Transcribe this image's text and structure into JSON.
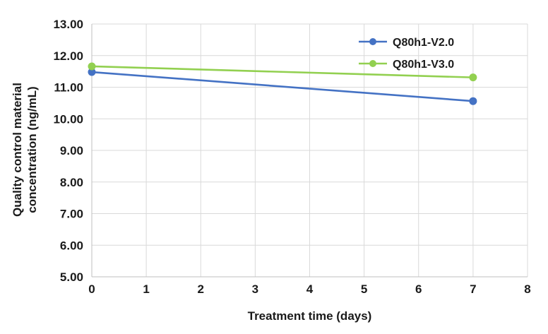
{
  "chart_data": {
    "type": "line",
    "xlabel": "Treatment time (days)",
    "ylabel": "Quality control material concentration (ng/mL)",
    "ylabel_lines": [
      "Quality control material",
      "concentration (ng/mL)"
    ],
    "x": [
      0,
      7
    ],
    "series": [
      {
        "name": "Q80h1-V2.0",
        "color": "#4472C4",
        "values": [
          11.48,
          10.56
        ]
      },
      {
        "name": "Q80h1-V3.0",
        "color": "#92D050",
        "values": [
          11.66,
          11.31
        ]
      }
    ],
    "xlim": [
      0,
      8
    ],
    "ylim": [
      5,
      13
    ],
    "x_tick_labels": [
      "0",
      "1",
      "2",
      "3",
      "4",
      "5",
      "6",
      "7",
      "8"
    ],
    "y_tick_labels": [
      "5.00",
      "6.00",
      "7.00",
      "8.00",
      "9.00",
      "10.00",
      "11.00",
      "12.00",
      "13.00"
    ],
    "grid": true,
    "legend_position": "top-right-inside",
    "marker": "circle"
  },
  "colors": {
    "grid": "#d9d9d9",
    "axis": "#bfbfbf",
    "text": "#1a1a1a",
    "background": "#ffffff"
  }
}
